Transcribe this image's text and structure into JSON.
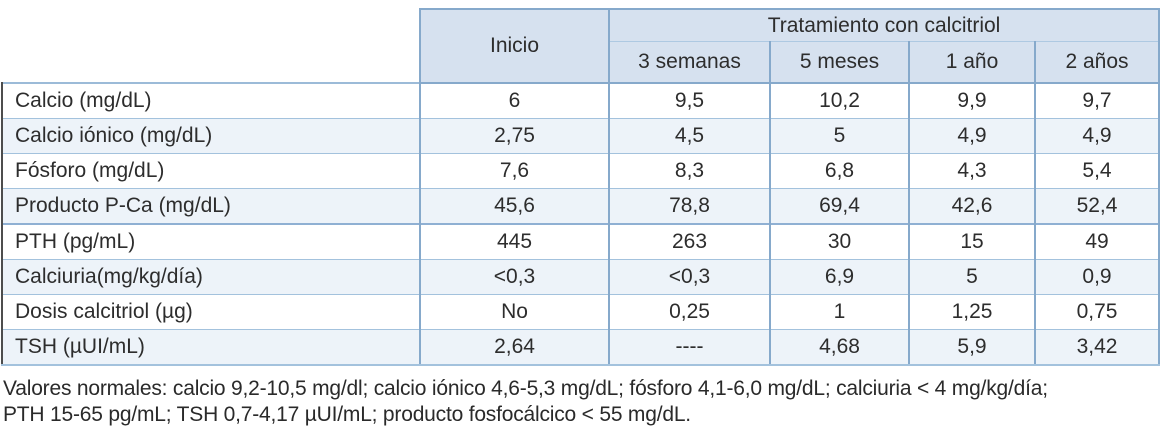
{
  "table": {
    "corner_blank": "",
    "inicio_header": "Inicio",
    "group_header": "Tratamiento con calcitriol",
    "sub_headers": [
      "3 semanas",
      "5 meses",
      "1 año",
      "2 años"
    ],
    "rows": [
      {
        "label": "Calcio (mg/dL)",
        "values": [
          "6",
          "9,5",
          "10,2",
          "9,9",
          "9,7"
        ]
      },
      {
        "label": "Calcio iónico (mg/dL)",
        "values": [
          "2,75",
          "4,5",
          "5",
          "4,9",
          "4,9"
        ]
      },
      {
        "label": "Fósforo (mg/dL)",
        "values": [
          "7,6",
          "8,3",
          "6,8",
          "4,3",
          "5,4"
        ]
      },
      {
        "label": "Producto P-Ca (mg/dL)",
        "values": [
          "45,6",
          "78,8",
          "69,4",
          "42,6",
          "52,4"
        ]
      },
      {
        "label": "PTH (pg/mL)",
        "values": [
          "445",
          "263",
          "30",
          "15",
          "49"
        ]
      },
      {
        "label": "Calciuria(mg/kg/día)",
        "values": [
          "<0,3",
          "<0,3",
          "6,9",
          "5",
          "0,9"
        ]
      },
      {
        "label": "Dosis calcitriol (µg)",
        "values": [
          "No",
          "0,25",
          "1",
          "1,25",
          "0,75"
        ]
      },
      {
        "label": "TSH (µUI/mL)",
        "values": [
          "2,64",
          "----",
          "4,68",
          "5,9",
          "3,42"
        ]
      }
    ]
  },
  "footnote": {
    "line1": "Valores normales: calcio 9,2-10,5 mg/dl; calcio iónico 4,6-5,3 mg/dL; fósforo 4,1-6,0 mg/dL; calciuria < 4 mg/kg/día;",
    "line2": "PTH 15-65 pg/mL; TSH 0,7-4,17 µUI/mL; producto fosfocálcico < 55 mg/dL."
  },
  "colors": {
    "header_fill": "#d6e1ef",
    "row_alt_fill": "#edf3f9",
    "border_strong": "#86a9cb",
    "border_light": "#a3c2dd",
    "outer_left": "#4d4d4d",
    "text": "#2d2d2d"
  }
}
